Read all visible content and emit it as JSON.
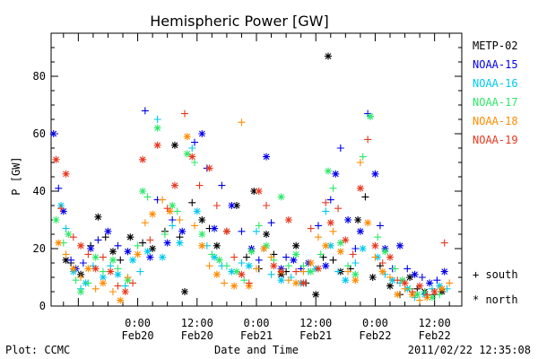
{
  "chart_data": {
    "type": "scatter",
    "title": "Hemispheric Power [GW]",
    "xlabel": "Date and Time",
    "ylabel": "P [GW]",
    "ylim": [
      0,
      95
    ],
    "yticks": [
      0,
      20,
      40,
      60,
      80
    ],
    "x_unit": "hours from 2011/02/19 00:00",
    "xlim": [
      6.5,
      89.5
    ],
    "xticks": [
      {
        "x": 24,
        "time": "0:00",
        "date": "Feb20"
      },
      {
        "x": 36,
        "time": "12:00",
        "date": "Feb20"
      },
      {
        "x": 48,
        "time": "0:00",
        "date": "Feb21"
      },
      {
        "x": 60,
        "time": "12:00",
        "date": "Feb21"
      },
      {
        "x": 72,
        "time": "0:00",
        "date": "Feb22"
      },
      {
        "x": 84,
        "time": "12:00",
        "date": "Feb22"
      }
    ],
    "footer_left": "Plot: CCMC",
    "footer_right": "2011/02/22 12:35:08",
    "marker_legend": [
      {
        "symbol": "+",
        "label": "south"
      },
      {
        "symbol": "*",
        "label": "north"
      }
    ],
    "series": [
      {
        "name": "METP-02",
        "color": "#000000",
        "points": [
          [
            9.5,
            16
          ],
          [
            10.5,
            15
          ],
          [
            12.5,
            11
          ],
          [
            14.5,
            21
          ],
          [
            16,
            31
          ],
          [
            17.5,
            24
          ],
          [
            19,
            19
          ],
          [
            20.5,
            16
          ],
          [
            22.5,
            24
          ],
          [
            25,
            22
          ],
          [
            27,
            20
          ],
          [
            29.5,
            26
          ],
          [
            31.5,
            56
          ],
          [
            32.5,
            24
          ],
          [
            33.5,
            5
          ],
          [
            35,
            36
          ],
          [
            37,
            30
          ],
          [
            38.5,
            27
          ],
          [
            40,
            21
          ],
          [
            42,
            26
          ],
          [
            44,
            35
          ],
          [
            46,
            17
          ],
          [
            47.5,
            40
          ],
          [
            48.5,
            13
          ],
          [
            50,
            25
          ],
          [
            51.5,
            18
          ],
          [
            53,
            11
          ],
          [
            54,
            12
          ],
          [
            56,
            21
          ],
          [
            58,
            8
          ],
          [
            60,
            4
          ],
          [
            61.5,
            17
          ],
          [
            62.5,
            87
          ],
          [
            63.5,
            16
          ],
          [
            65,
            12
          ],
          [
            67,
            13
          ],
          [
            68.5,
            30
          ],
          [
            70,
            38
          ],
          [
            71.5,
            10
          ],
          [
            73,
            14
          ],
          [
            75,
            7
          ],
          [
            77,
            4
          ],
          [
            79,
            10
          ],
          [
            80.5,
            6
          ],
          [
            82,
            5
          ],
          [
            84,
            4
          ],
          [
            85.5,
            5
          ]
        ]
      },
      {
        "name": "NOAA-15",
        "color": "#0000ee",
        "points": [
          [
            7,
            60
          ],
          [
            8,
            41
          ],
          [
            9,
            33
          ],
          [
            10.5,
            16
          ],
          [
            11.5,
            13
          ],
          [
            13,
            15
          ],
          [
            14.5,
            20
          ],
          [
            16,
            23
          ],
          [
            18,
            26
          ],
          [
            20,
            21
          ],
          [
            22,
            19
          ],
          [
            25.5,
            68
          ],
          [
            26.5,
            17
          ],
          [
            28,
            37
          ],
          [
            30,
            22
          ],
          [
            31,
            30
          ],
          [
            33,
            26
          ],
          [
            35.5,
            57
          ],
          [
            37,
            60
          ],
          [
            38,
            48
          ],
          [
            39.5,
            27
          ],
          [
            41,
            42
          ],
          [
            43,
            35
          ],
          [
            45,
            26
          ],
          [
            47,
            20
          ],
          [
            48.5,
            16
          ],
          [
            50,
            52
          ],
          [
            51,
            29
          ],
          [
            53,
            13
          ],
          [
            54,
            17
          ],
          [
            55.5,
            16
          ],
          [
            57,
            13
          ],
          [
            58.5,
            15
          ],
          [
            60.5,
            28
          ],
          [
            62,
            14
          ],
          [
            63,
            37
          ],
          [
            64,
            46
          ],
          [
            65,
            55
          ],
          [
            66.5,
            30
          ],
          [
            68,
            20
          ],
          [
            69,
            26
          ],
          [
            70.5,
            67
          ],
          [
            72,
            46
          ],
          [
            73,
            28
          ],
          [
            74,
            20
          ],
          [
            75.5,
            13
          ],
          [
            77,
            21
          ],
          [
            78.5,
            13
          ],
          [
            80,
            11
          ],
          [
            81.5,
            10
          ],
          [
            83,
            8
          ],
          [
            84.5,
            9
          ],
          [
            86,
            12
          ]
        ]
      },
      {
        "name": "NOAA-16",
        "color": "#00c8ee",
        "points": [
          [
            8.5,
            35
          ],
          [
            9.5,
            27
          ],
          [
            11,
            12
          ],
          [
            12.5,
            6
          ],
          [
            13.5,
            8
          ],
          [
            15,
            14
          ],
          [
            17,
            10
          ],
          [
            18.5,
            14
          ],
          [
            20,
            11
          ],
          [
            21.5,
            7
          ],
          [
            23,
            16
          ],
          [
            24.5,
            12
          ],
          [
            26,
            19
          ],
          [
            28,
            65
          ],
          [
            29,
            17
          ],
          [
            31,
            28
          ],
          [
            32.5,
            22
          ],
          [
            35,
            55
          ],
          [
            36,
            33
          ],
          [
            38,
            21
          ],
          [
            39.5,
            17
          ],
          [
            41,
            14
          ],
          [
            43,
            12
          ],
          [
            45,
            15
          ],
          [
            46.5,
            14
          ],
          [
            48,
            26
          ],
          [
            49.5,
            20
          ],
          [
            51,
            11
          ],
          [
            53,
            9
          ],
          [
            55,
            10
          ],
          [
            57,
            8
          ],
          [
            58.5,
            12
          ],
          [
            60,
            13
          ],
          [
            62,
            33
          ],
          [
            63,
            21
          ],
          [
            64.5,
            12
          ],
          [
            66,
            9
          ],
          [
            68,
            15
          ],
          [
            69.5,
            20
          ],
          [
            71,
            66
          ],
          [
            72.5,
            17
          ],
          [
            74,
            11
          ],
          [
            75.5,
            9
          ],
          [
            77,
            8
          ],
          [
            78.5,
            6
          ],
          [
            80,
            3
          ],
          [
            82,
            4
          ],
          [
            83.5,
            6
          ],
          [
            85,
            7
          ],
          [
            86.5,
            6
          ]
        ]
      },
      {
        "name": "NOAA-17",
        "color": "#2ee868",
        "points": [
          [
            7.5,
            30
          ],
          [
            9,
            22
          ],
          [
            10,
            25
          ],
          [
            11.5,
            9
          ],
          [
            12.5,
            5
          ],
          [
            14,
            8
          ],
          [
            15.5,
            17
          ],
          [
            17,
            12
          ],
          [
            19,
            16
          ],
          [
            20,
            13
          ],
          [
            22,
            9
          ],
          [
            24,
            21
          ],
          [
            25,
            40
          ],
          [
            26,
            38
          ],
          [
            28,
            62
          ],
          [
            29.5,
            25
          ],
          [
            31,
            35
          ],
          [
            32,
            33
          ],
          [
            34,
            53
          ],
          [
            35.5,
            50
          ],
          [
            37,
            25
          ],
          [
            39,
            18
          ],
          [
            40.5,
            16
          ],
          [
            42,
            14
          ],
          [
            44,
            12
          ],
          [
            45.5,
            9
          ],
          [
            47,
            19
          ],
          [
            48.5,
            28
          ],
          [
            50,
            21
          ],
          [
            51.5,
            16
          ],
          [
            53,
            38
          ],
          [
            54.5,
            14
          ],
          [
            56,
            18
          ],
          [
            57.5,
            14
          ],
          [
            59,
            12
          ],
          [
            61,
            18
          ],
          [
            62.5,
            47
          ],
          [
            63.5,
            41
          ],
          [
            65,
            22
          ],
          [
            66.5,
            14
          ],
          [
            68,
            11
          ],
          [
            69.5,
            52
          ],
          [
            71,
            66
          ],
          [
            72.5,
            24
          ],
          [
            74,
            19
          ],
          [
            76,
            13
          ],
          [
            77.5,
            9
          ],
          [
            79,
            6
          ],
          [
            80.5,
            4
          ],
          [
            82,
            5
          ],
          [
            83.5,
            3
          ],
          [
            85,
            4
          ]
        ]
      },
      {
        "name": "NOAA-18",
        "color": "#ff8c00",
        "points": [
          [
            8,
            22
          ],
          [
            9.5,
            18
          ],
          [
            11,
            13
          ],
          [
            12.5,
            10
          ],
          [
            14,
            13
          ],
          [
            15.5,
            6
          ],
          [
            17,
            8
          ],
          [
            19,
            5
          ],
          [
            20.5,
            2
          ],
          [
            22,
            10
          ],
          [
            24,
            18
          ],
          [
            25.5,
            29
          ],
          [
            27,
            32
          ],
          [
            29,
            37
          ],
          [
            30.5,
            33
          ],
          [
            32.5,
            30
          ],
          [
            34,
            59
          ],
          [
            35.5,
            28
          ],
          [
            37,
            21
          ],
          [
            38.5,
            14
          ],
          [
            40,
            11
          ],
          [
            41.5,
            8
          ],
          [
            43.5,
            7
          ],
          [
            45,
            64
          ],
          [
            46.5,
            7
          ],
          [
            48,
            13
          ],
          [
            49.5,
            20
          ],
          [
            51,
            17
          ],
          [
            53,
            12
          ],
          [
            54.5,
            9
          ],
          [
            56,
            8
          ],
          [
            57.5,
            12
          ],
          [
            59,
            15
          ],
          [
            60.5,
            24
          ],
          [
            62,
            21
          ],
          [
            63.5,
            26
          ],
          [
            65,
            19
          ],
          [
            66.5,
            12
          ],
          [
            68,
            9
          ],
          [
            69,
            50
          ],
          [
            70.5,
            29
          ],
          [
            72,
            17
          ],
          [
            73.5,
            12
          ],
          [
            75,
            10
          ],
          [
            76.5,
            4
          ],
          [
            78,
            6
          ],
          [
            79.5,
            4
          ],
          [
            81,
            2
          ],
          [
            82.5,
            3
          ],
          [
            84,
            5
          ],
          [
            85.5,
            6
          ],
          [
            87,
            8
          ]
        ]
      },
      {
        "name": "NOAA-19",
        "color": "#e8381e",
        "points": [
          [
            7.5,
            51
          ],
          [
            8.5,
            34
          ],
          [
            9.5,
            46
          ],
          [
            11,
            24
          ],
          [
            12.5,
            21
          ],
          [
            14,
            18
          ],
          [
            15.5,
            13
          ],
          [
            17,
            17
          ],
          [
            18.5,
            12
          ],
          [
            20,
            7
          ],
          [
            21.5,
            5
          ],
          [
            23,
            8
          ],
          [
            25,
            51
          ],
          [
            26.5,
            23
          ],
          [
            28,
            56
          ],
          [
            30,
            34
          ],
          [
            31.5,
            42
          ],
          [
            33.5,
            67
          ],
          [
            35,
            52
          ],
          [
            36.5,
            42
          ],
          [
            38.5,
            48
          ],
          [
            40,
            35
          ],
          [
            42,
            26
          ],
          [
            43.5,
            17
          ],
          [
            45,
            11
          ],
          [
            46.5,
            8
          ],
          [
            48.5,
            40
          ],
          [
            50,
            35
          ],
          [
            51.5,
            14
          ],
          [
            53,
            12
          ],
          [
            54.5,
            30
          ],
          [
            56,
            12
          ],
          [
            57.5,
            8
          ],
          [
            59,
            27
          ],
          [
            60.5,
            13
          ],
          [
            62,
            36
          ],
          [
            63,
            29
          ],
          [
            64.5,
            34
          ],
          [
            66,
            23
          ],
          [
            67.5,
            18
          ],
          [
            69,
            41
          ],
          [
            70.5,
            58
          ],
          [
            72,
            21
          ],
          [
            73.5,
            15
          ],
          [
            75,
            17
          ],
          [
            76.5,
            9
          ],
          [
            78,
            8
          ],
          [
            79.5,
            5
          ],
          [
            81,
            7
          ],
          [
            82.5,
            4
          ],
          [
            84,
            5
          ],
          [
            86,
            22
          ]
        ]
      }
    ]
  }
}
